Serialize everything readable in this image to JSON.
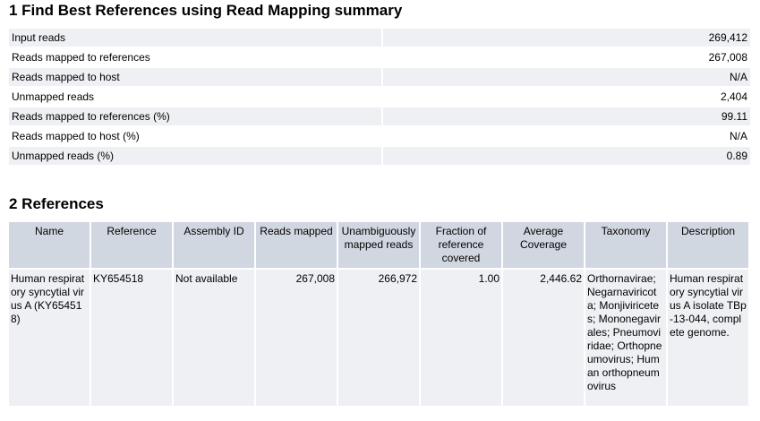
{
  "section1": {
    "title": "1 Find Best References using Read Mapping summary",
    "rows": [
      {
        "label": "Input reads",
        "value": "269,412"
      },
      {
        "label": "Reads mapped to references",
        "value": "267,008"
      },
      {
        "label": "Reads mapped to host",
        "value": "N/A"
      },
      {
        "label": "Unmapped reads",
        "value": "2,404"
      },
      {
        "label": "Reads mapped to references (%)",
        "value": "99.11"
      },
      {
        "label": "Reads mapped to host (%)",
        "value": "N/A"
      },
      {
        "label": "Unmapped reads (%)",
        "value": "0.89"
      }
    ]
  },
  "section2": {
    "title": "2 References",
    "columns": [
      "Name",
      "Reference",
      "Assembly ID",
      "Reads mapped",
      "Unambiguously mapped reads",
      "Fraction of reference covered",
      "Average Coverage",
      "Taxonomy",
      "Description"
    ],
    "numeric": [
      false,
      false,
      false,
      true,
      true,
      true,
      true,
      false,
      false
    ],
    "rows": [
      [
        "Human respiratory syncytial virus A (KY654518)",
        "KY654518",
        "Not available",
        "267,008",
        "266,972",
        "1.00",
        "2,446.62",
        "Orthornavirae; Negarnaviricota; Monjiviricetes; Mononegavirales; Pneumoviridae; Orthopneumovirus; Human orthopneumovirus",
        "Human respiratory syncytial virus A isolate TBp-13-044, complete genome."
      ]
    ]
  }
}
